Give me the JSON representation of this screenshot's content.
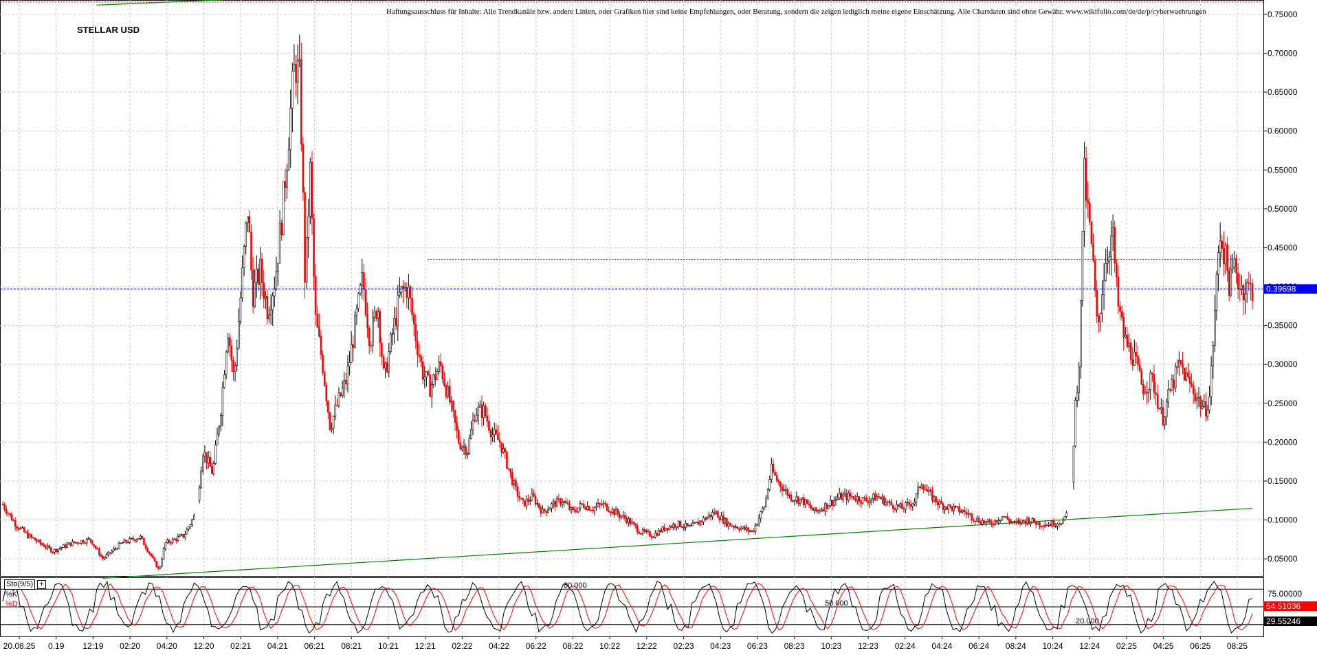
{
  "chart_data": {
    "type": "candlestick",
    "title": "STELLAR USD",
    "disclaimer": "Haftungsausschluss für Inhalte: Alle Trendkanäle bzw. andere Linien, oder Grafiken hier sind keine Empfehlungen, oder Beratung, sondern die zeigen lediglich meine eigene Einschätzung. Alle Chartdaten sind ohne Gewähr. www.wikifolio.com/de/de/p/cyberwaehrungen",
    "y_ticks": [
      "0.75000",
      "0.70000",
      "0.65000",
      "0.60000",
      "0.55000",
      "0.50000",
      "0.45000",
      "0.40000",
      "0.35000",
      "0.30000",
      "0.25000",
      "0.20000",
      "0.15000",
      "0.10000",
      "0.05000"
    ],
    "y_tick_values": [
      0.75,
      0.7,
      0.65,
      0.6,
      0.55,
      0.5,
      0.45,
      0.4,
      0.35,
      0.3,
      0.25,
      0.2,
      0.15,
      0.1,
      0.05
    ],
    "ylim": [
      0.028,
      0.765
    ],
    "current_price": "0.39698",
    "current_price_value": 0.39698,
    "resistance_value": 0.435,
    "x_ticks": [
      "20.08.25",
      "0.19",
      "12:19",
      "02:20",
      "04:20",
      "12:20",
      "02:21",
      "04:21",
      "06:21",
      "08:21",
      "10:21",
      "12:21",
      "02:22",
      "04:22",
      "06:22",
      "08:22",
      "10:22",
      "12:22",
      "02:23",
      "04:23",
      "06:23",
      "08:23",
      "10:23",
      "12:23",
      "02:24",
      "04:24",
      "06:24",
      "08:24",
      "10:24",
      "12:24",
      "02:25",
      "04:25",
      "06:25",
      "08:25"
    ],
    "series": [
      {
        "x": 0,
        "y": 0.12
      },
      {
        "x": 0.01,
        "y": 0.095
      },
      {
        "x": 0.02,
        "y": 0.08
      },
      {
        "x": 0.03,
        "y": 0.07
      },
      {
        "x": 0.04,
        "y": 0.06
      },
      {
        "x": 0.055,
        "y": 0.07
      },
      {
        "x": 0.07,
        "y": 0.075
      },
      {
        "x": 0.08,
        "y": 0.05
      },
      {
        "x": 0.095,
        "y": 0.07
      },
      {
        "x": 0.11,
        "y": 0.078
      },
      {
        "x": 0.12,
        "y": 0.05
      },
      {
        "x": 0.125,
        "y": 0.035
      },
      {
        "x": 0.13,
        "y": 0.07
      },
      {
        "x": 0.145,
        "y": 0.08
      },
      {
        "x": 0.155,
        "y": 0.11
      },
      {
        "x": 0.16,
        "y": 0.19
      },
      {
        "x": 0.168,
        "y": 0.16
      },
      {
        "x": 0.175,
        "y": 0.25
      },
      {
        "x": 0.18,
        "y": 0.35
      },
      {
        "x": 0.185,
        "y": 0.28
      },
      {
        "x": 0.19,
        "y": 0.38
      },
      {
        "x": 0.196,
        "y": 0.5
      },
      {
        "x": 0.2,
        "y": 0.39
      },
      {
        "x": 0.206,
        "y": 0.42
      },
      {
        "x": 0.212,
        "y": 0.37
      },
      {
        "x": 0.218,
        "y": 0.41
      },
      {
        "x": 0.224,
        "y": 0.5
      },
      {
        "x": 0.23,
        "y": 0.62
      },
      {
        "x": 0.234,
        "y": 0.69
      },
      {
        "x": 0.238,
        "y": 0.66
      },
      {
        "x": 0.242,
        "y": 0.4
      },
      {
        "x": 0.246,
        "y": 0.55
      },
      {
        "x": 0.25,
        "y": 0.36
      },
      {
        "x": 0.256,
        "y": 0.3
      },
      {
        "x": 0.262,
        "y": 0.22
      },
      {
        "x": 0.268,
        "y": 0.25
      },
      {
        "x": 0.275,
        "y": 0.28
      },
      {
        "x": 0.282,
        "y": 0.35
      },
      {
        "x": 0.288,
        "y": 0.41
      },
      {
        "x": 0.294,
        "y": 0.33
      },
      {
        "x": 0.3,
        "y": 0.38
      },
      {
        "x": 0.305,
        "y": 0.28
      },
      {
        "x": 0.312,
        "y": 0.34
      },
      {
        "x": 0.318,
        "y": 0.39
      },
      {
        "x": 0.324,
        "y": 0.4
      },
      {
        "x": 0.33,
        "y": 0.34
      },
      {
        "x": 0.336,
        "y": 0.29
      },
      {
        "x": 0.342,
        "y": 0.27
      },
      {
        "x": 0.35,
        "y": 0.3
      },
      {
        "x": 0.358,
        "y": 0.25
      },
      {
        "x": 0.365,
        "y": 0.2
      },
      {
        "x": 0.372,
        "y": 0.19
      },
      {
        "x": 0.378,
        "y": 0.24
      },
      {
        "x": 0.385,
        "y": 0.24
      },
      {
        "x": 0.392,
        "y": 0.21
      },
      {
        "x": 0.398,
        "y": 0.2
      },
      {
        "x": 0.404,
        "y": 0.17
      },
      {
        "x": 0.41,
        "y": 0.14
      },
      {
        "x": 0.416,
        "y": 0.12
      },
      {
        "x": 0.424,
        "y": 0.13
      },
      {
        "x": 0.432,
        "y": 0.11
      },
      {
        "x": 0.44,
        "y": 0.12
      },
      {
        "x": 0.448,
        "y": 0.125
      },
      {
        "x": 0.456,
        "y": 0.11
      },
      {
        "x": 0.464,
        "y": 0.12
      },
      {
        "x": 0.472,
        "y": 0.115
      },
      {
        "x": 0.48,
        "y": 0.12
      },
      {
        "x": 0.49,
        "y": 0.11
      },
      {
        "x": 0.5,
        "y": 0.1
      },
      {
        "x": 0.51,
        "y": 0.085
      },
      {
        "x": 0.52,
        "y": 0.08
      },
      {
        "x": 0.53,
        "y": 0.09
      },
      {
        "x": 0.54,
        "y": 0.095
      },
      {
        "x": 0.55,
        "y": 0.09
      },
      {
        "x": 0.56,
        "y": 0.1
      },
      {
        "x": 0.57,
        "y": 0.11
      },
      {
        "x": 0.58,
        "y": 0.095
      },
      {
        "x": 0.59,
        "y": 0.09
      },
      {
        "x": 0.6,
        "y": 0.085
      },
      {
        "x": 0.61,
        "y": 0.12
      },
      {
        "x": 0.615,
        "y": 0.165
      },
      {
        "x": 0.62,
        "y": 0.15
      },
      {
        "x": 0.63,
        "y": 0.13
      },
      {
        "x": 0.64,
        "y": 0.125
      },
      {
        "x": 0.65,
        "y": 0.11
      },
      {
        "x": 0.66,
        "y": 0.12
      },
      {
        "x": 0.67,
        "y": 0.13
      },
      {
        "x": 0.68,
        "y": 0.13
      },
      {
        "x": 0.69,
        "y": 0.125
      },
      {
        "x": 0.7,
        "y": 0.13
      },
      {
        "x": 0.71,
        "y": 0.12
      },
      {
        "x": 0.72,
        "y": 0.115
      },
      {
        "x": 0.73,
        "y": 0.125
      },
      {
        "x": 0.735,
        "y": 0.15
      },
      {
        "x": 0.74,
        "y": 0.135
      },
      {
        "x": 0.75,
        "y": 0.12
      },
      {
        "x": 0.76,
        "y": 0.115
      },
      {
        "x": 0.77,
        "y": 0.11
      },
      {
        "x": 0.78,
        "y": 0.1
      },
      {
        "x": 0.79,
        "y": 0.095
      },
      {
        "x": 0.8,
        "y": 0.105
      },
      {
        "x": 0.81,
        "y": 0.095
      },
      {
        "x": 0.82,
        "y": 0.1
      },
      {
        "x": 0.83,
        "y": 0.095
      },
      {
        "x": 0.84,
        "y": 0.095
      },
      {
        "x": 0.85,
        "y": 0.1
      },
      {
        "x": 0.855,
        "y": 0.13
      },
      {
        "x": 0.858,
        "y": 0.24
      },
      {
        "x": 0.862,
        "y": 0.32
      },
      {
        "x": 0.865,
        "y": 0.55
      },
      {
        "x": 0.868,
        "y": 0.5
      },
      {
        "x": 0.872,
        "y": 0.44
      },
      {
        "x": 0.876,
        "y": 0.34
      },
      {
        "x": 0.882,
        "y": 0.43
      },
      {
        "x": 0.888,
        "y": 0.47
      },
      {
        "x": 0.892,
        "y": 0.38
      },
      {
        "x": 0.898,
        "y": 0.33
      },
      {
        "x": 0.905,
        "y": 0.31
      },
      {
        "x": 0.912,
        "y": 0.27
      },
      {
        "x": 0.92,
        "y": 0.28
      },
      {
        "x": 0.928,
        "y": 0.23
      },
      {
        "x": 0.935,
        "y": 0.27
      },
      {
        "x": 0.942,
        "y": 0.3
      },
      {
        "x": 0.948,
        "y": 0.28
      },
      {
        "x": 0.955,
        "y": 0.26
      },
      {
        "x": 0.962,
        "y": 0.24
      },
      {
        "x": 0.966,
        "y": 0.26
      },
      {
        "x": 0.97,
        "y": 0.37
      },
      {
        "x": 0.974,
        "y": 0.47
      },
      {
        "x": 0.978,
        "y": 0.44
      },
      {
        "x": 0.982,
        "y": 0.4
      },
      {
        "x": 0.986,
        "y": 0.43
      },
      {
        "x": 0.99,
        "y": 0.4
      },
      {
        "x": 1.0,
        "y": 0.397
      }
    ],
    "support_line": {
      "x": [
        0.08,
        1.0
      ],
      "y": [
        0.025,
        0.115
      ]
    },
    "top_line": {
      "x": [
        0.075,
        0.27
      ],
      "y": [
        0.762,
        0.775
      ]
    },
    "stochastic": {
      "label": "Sto(9/5)",
      "plus": "+",
      "k_label": "%K",
      "d_label": "%D",
      "levels": [
        "80.000",
        "50.000",
        "20.000"
      ],
      "level_values": [
        80,
        50,
        20
      ],
      "y_ticks": [
        "75.00000"
      ],
      "k_value": "54.51036",
      "d_value": "29.55246",
      "k_value_num": 54.51036,
      "d_value_num": 29.55246
    },
    "colors": {
      "up": "#000000",
      "down": "#ff0000",
      "grid": "#c8c8c8",
      "current": "#0000ff",
      "support": "#008000",
      "resistance": "#ff0000",
      "label_bg_blue": "#0000ff",
      "label_bg_red": "#ff0000",
      "label_bg_black": "#000000"
    },
    "grid": true
  }
}
